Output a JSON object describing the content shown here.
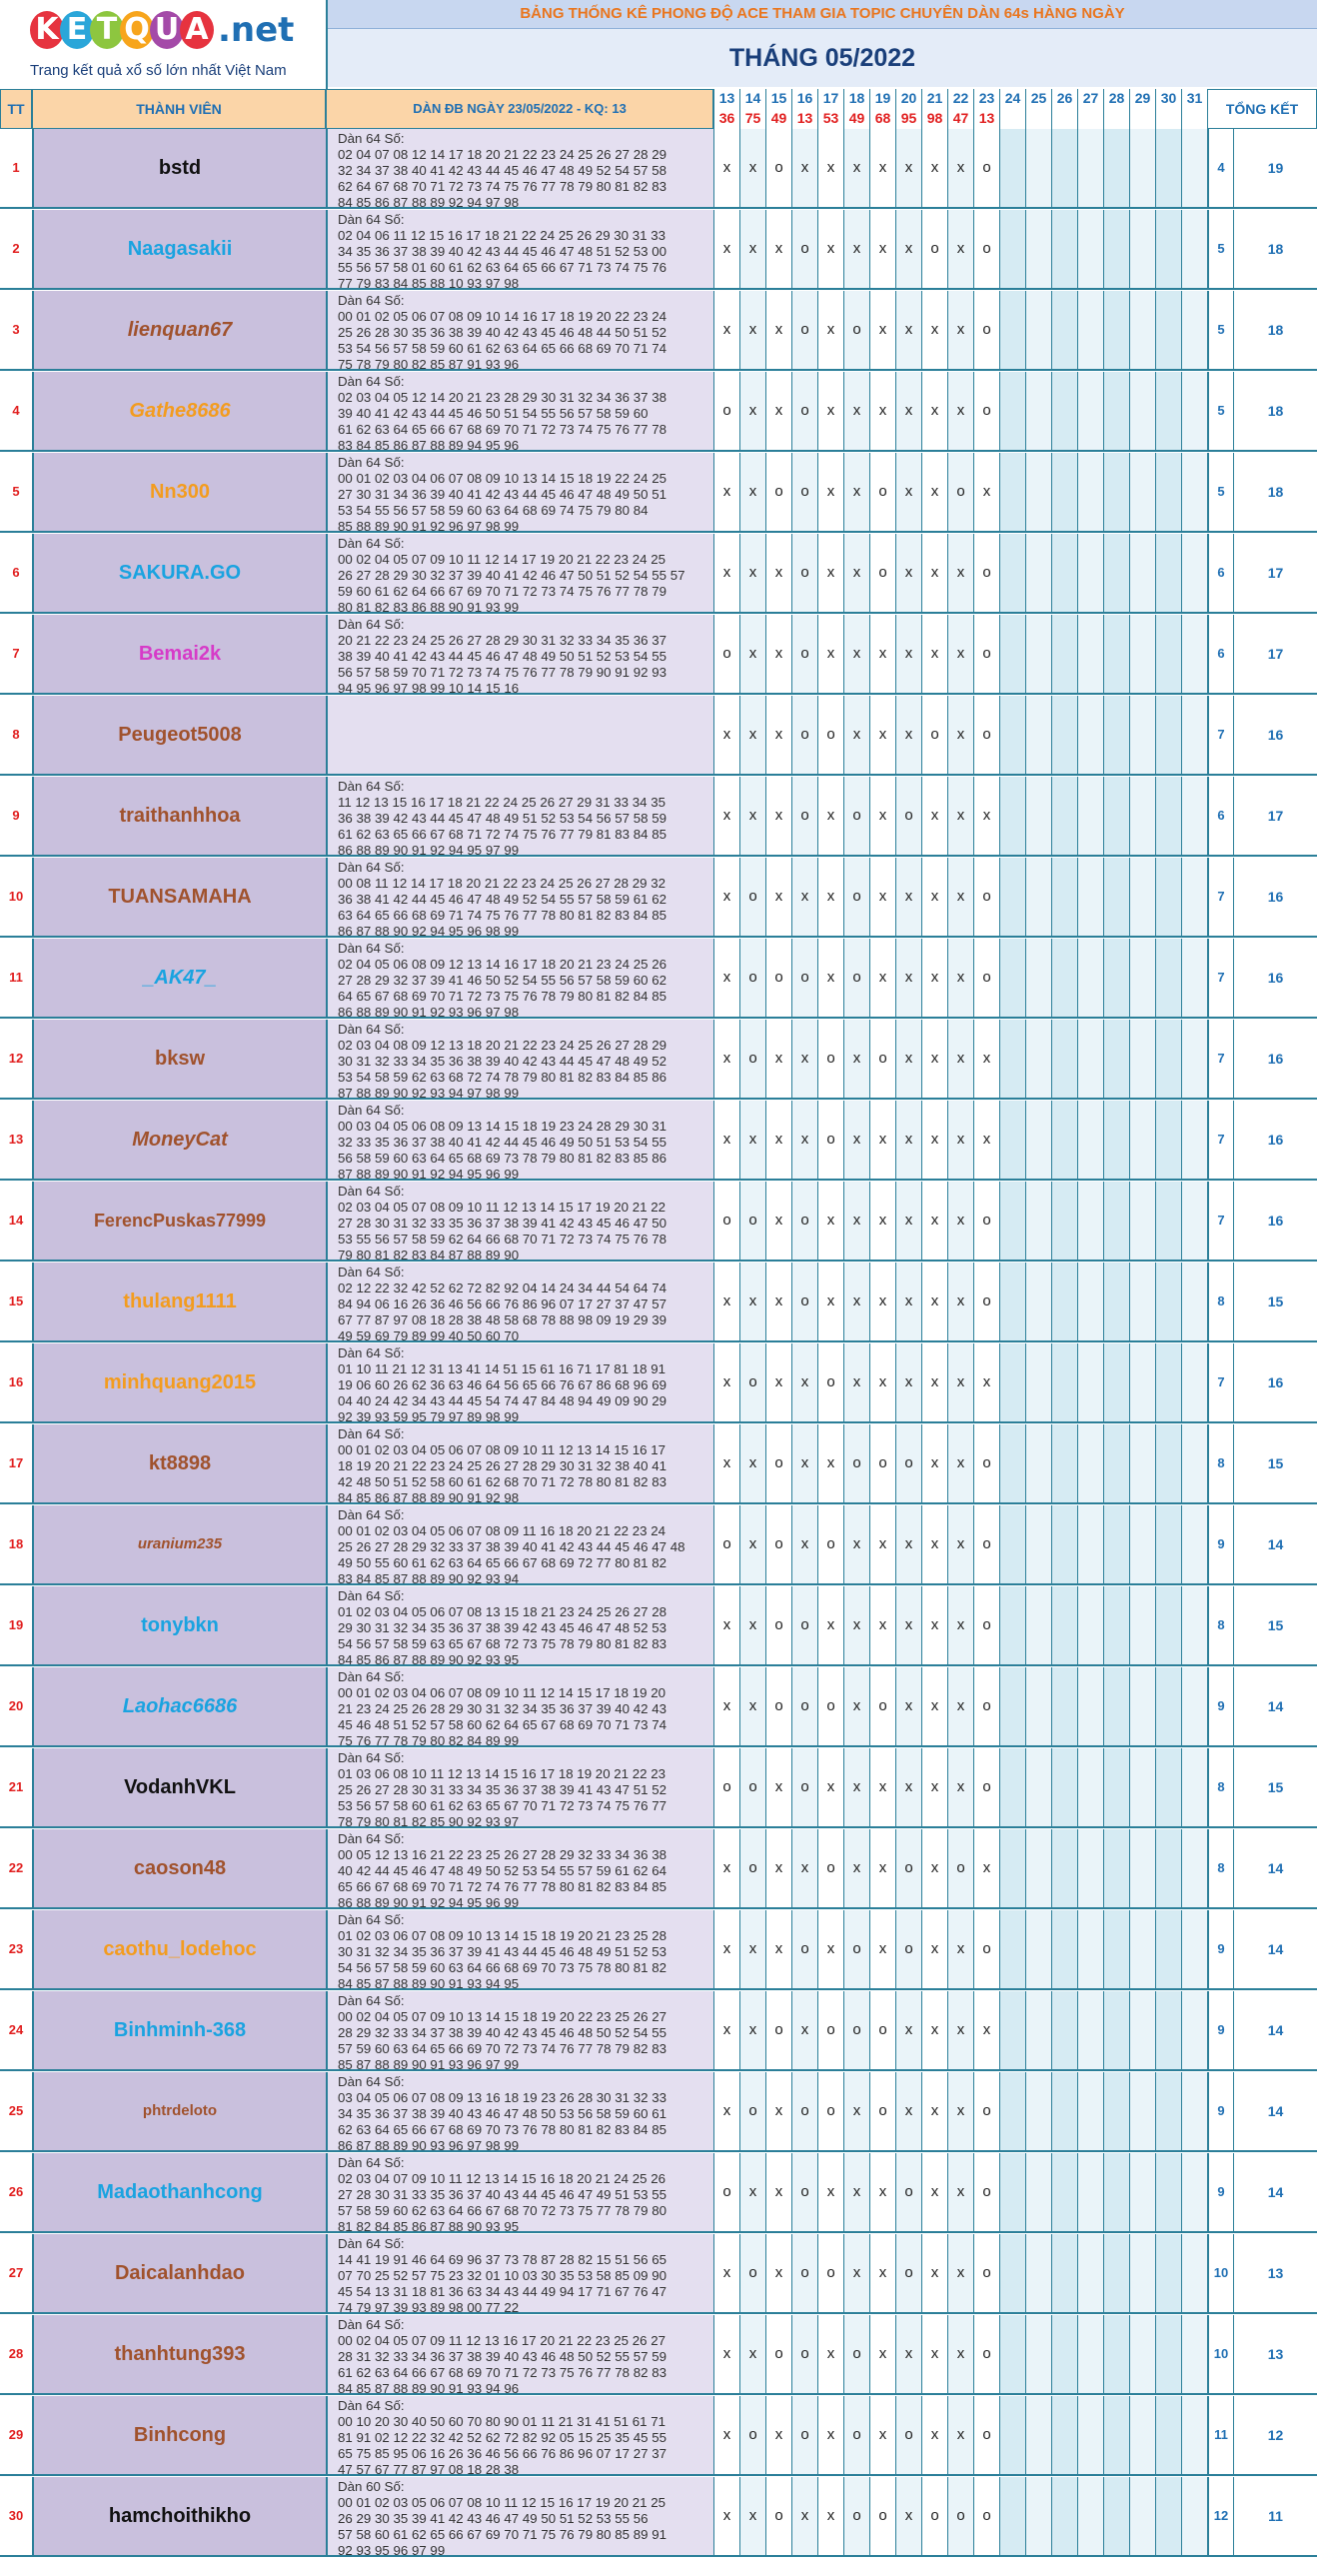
{
  "brand": {
    "logo_letters": [
      "K",
      "E",
      "T",
      "Q",
      "U",
      "A"
    ],
    "logo_colors": [
      "#e6333f",
      "#2aa6d9",
      "#8dc63f",
      "#f7a51c",
      "#a44aa8",
      "#e6333f"
    ],
    "logo_suffix": ".net",
    "tagline": "Trang kết quả xổ số lớn nhất Việt Nam"
  },
  "header": {
    "banner": "BẢNG THỐNG KÊ PHONG ĐỘ ACE THAM GIA TOPIC CHUYÊN DÀN 64s HÀNG NGÀY",
    "month": "THÁNG 05/2022"
  },
  "columns": {
    "tt": "TT",
    "member": "THÀNH VIÊN",
    "dan": "DÀN ĐB NGÀY 23/05/2022 - KQ: 13",
    "total": "TỔNG KẾT"
  },
  "dates": [
    "13",
    "14",
    "15",
    "16",
    "17",
    "18",
    "19",
    "20",
    "21",
    "22",
    "23",
    "24",
    "25",
    "26",
    "27",
    "28",
    "29",
    "30",
    "31"
  ],
  "results": [
    "36",
    "75",
    "49",
    "13",
    "53",
    "49",
    "68",
    "95",
    "98",
    "47",
    "13",
    "",
    "",
    "",
    "",
    "",
    "",
    "",
    ""
  ],
  "rows": [
    {
      "tt": "1",
      "name": "bstd",
      "color": "#111111",
      "style": "normal",
      "dan": "Dàn 64 Số:\n02 04 07 08 12 14 17 18 20 21 22 23 24 25 26 27 28 29\n32 34 37 38 40 41 42 43 44 45 46 47 48 49 52 54 57 58\n62 64 67 68 70 71 72 73 74 75 76 77 78 79 80 81 82 83\n84 85 86 87 88 89 92 94 97 98",
      "marks": [
        "x",
        "x",
        "o",
        "x",
        "x",
        "x",
        "x",
        "x",
        "x",
        "x",
        "o"
      ],
      "n1": "4",
      "n2": "19"
    },
    {
      "tt": "2",
      "name": "Naagasakii",
      "color": "#1aa3e0",
      "style": "normal",
      "dan": "Dàn 64 Số:\n02 04 06 11 12 15 16 17 18 21 22 24 25 26 29 30 31 33\n34 35 36 37 38 39 40 42 43 44 45 46 47 48 51 52 53 00\n55 56 57 58 01 60 61 62 63 64 65 66 67 71 73 74 75 76\n77 79 83 84 85 88 10 93 97 98",
      "marks": [
        "x",
        "x",
        "x",
        "o",
        "x",
        "x",
        "x",
        "x",
        "o",
        "x",
        "o"
      ],
      "n1": "5",
      "n2": "18"
    },
    {
      "tt": "3",
      "name": "lienquan67",
      "color": "#a0522d",
      "style": "italic",
      "dan": "Dàn 64 Số:\n00 01 02 05 06 07 08 09 10 14 16 17 18 19 20 22 23 24\n25 26 28 30 35 36 38 39 40 42 43 45 46 48 44 50 51 52\n53 54 56 57 58 59 60 61 62 63 64 65 66 68 69 70 71 74\n75 78 79 80 82 85 87 91 93 96",
      "marks": [
        "x",
        "x",
        "x",
        "o",
        "x",
        "o",
        "x",
        "x",
        "x",
        "x",
        "o"
      ],
      "n1": "5",
      "n2": "18"
    },
    {
      "tt": "4",
      "name": "Gathe8686",
      "color": "#f39c1f",
      "style": "italic",
      "dan": "Dàn 64 Số:\n02 03 04 05 12 14 20 21 23 28 29 30 31 32 34 36 37 38\n39 40 41 42 43 44 45 46 50 51 54 55 56 57 58 59 60\n61 62 63 64 65 66 67 68 69 70 71 72 73 74 75 76 77 78\n83 84 85 86 87 88 89 94 95 96",
      "marks": [
        "o",
        "x",
        "x",
        "o",
        "x",
        "x",
        "x",
        "x",
        "x",
        "x",
        "o"
      ],
      "n1": "5",
      "n2": "18"
    },
    {
      "tt": "5",
      "name": "Nn300",
      "color": "#f39c1f",
      "style": "normal",
      "dan": "Dàn 64 Số:\n00 01 02 03 04 06 07 08 09 10 13 14 15 18 19 22 24 25\n27 30 31 34 36 39 40 41 42 43 44 45 46 47 48 49 50 51\n53 54 55 56 57 58 59 60 63 64 68 69 74 75 79 80 84\n85 88 89 90 91 92 96 97 98 99",
      "marks": [
        "x",
        "x",
        "o",
        "o",
        "x",
        "x",
        "o",
        "x",
        "x",
        "o",
        "x"
      ],
      "n1": "5",
      "n2": "18"
    },
    {
      "tt": "6",
      "name": "SAKURA.GO",
      "color": "#1aa3e0",
      "style": "normal",
      "dan": "Dàn 64 Số:\n00 02 04 05 07 09 10 11 12 14 17 19 20 21 22 23 24 25\n26 27 28 29 30 32 37 39 40 41 42 46 47 50 51 52 54 55 57\n59 60 61 62 64 66 67 69 70 71 72 73 74 75 76 77 78 79\n80 81 82 83 86 88 90 91 93 99",
      "marks": [
        "x",
        "x",
        "x",
        "o",
        "x",
        "x",
        "o",
        "x",
        "x",
        "x",
        "o"
      ],
      "n1": "6",
      "n2": "17"
    },
    {
      "tt": "7",
      "name": "Bemai2k",
      "color": "#d63bc8",
      "style": "normal",
      "dan": "Dàn 64 Số:\n20 21 22 23 24 25 26 27 28 29 30 31 32 33 34 35 36 37\n38 39 40 41 42 43 44 45 46 47 48 49 50 51 52 53 54 55\n56 57 58 59 70 71 72 73 74 75 76 77 78 79 90 91 92 93\n94 95 96 97 98 99 10 14 15 16",
      "marks": [
        "o",
        "x",
        "x",
        "o",
        "x",
        "x",
        "x",
        "x",
        "x",
        "x",
        "o"
      ],
      "n1": "6",
      "n2": "17"
    },
    {
      "tt": "8",
      "name": "Peugeot5008",
      "color": "#a0522d",
      "style": "normal",
      "dan": "",
      "marks": [
        "x",
        "x",
        "x",
        "o",
        "o",
        "x",
        "x",
        "x",
        "o",
        "x",
        "o"
      ],
      "n1": "7",
      "n2": "16"
    },
    {
      "tt": "9",
      "name": "traithanhhoa",
      "color": "#a0522d",
      "style": "normal",
      "dan": "Dàn 64 Số:\n11 12 13 15 16 17 18 21 22 24 25 26 27 29 31 33 34 35\n36 38 39 42 43 44 45 47 48 49 51 52 53 54 56 57 58 59\n61 62 63 65 66 67 68 71 72 74 75 76 77 79 81 83 84 85\n86 88 89 90 91 92 94 95 97 99",
      "marks": [
        "x",
        "x",
        "x",
        "o",
        "x",
        "o",
        "x",
        "o",
        "x",
        "x",
        "x"
      ],
      "n1": "6",
      "n2": "17"
    },
    {
      "tt": "10",
      "name": "TUANSAMAHA",
      "color": "#a0522d",
      "style": "normal",
      "dan": "Dàn 64 Số:\n00 08 11 12 14 17 18 20 21 22 23 24 25 26 27 28 29 32\n36 38 41 42 44 45 46 47 48 49 52 54 55 57 58 59 61 62\n63 64 65 66 68 69 71 74 75 76 77 78 80 81 82 83 84 85\n86 87 88 90 92 94 95 96 98 99",
      "marks": [
        "x",
        "o",
        "x",
        "x",
        "x",
        "o",
        "x",
        "x",
        "x",
        "x",
        "o"
      ],
      "n1": "7",
      "n2": "16"
    },
    {
      "tt": "11",
      "name": "_AK47_",
      "color": "#1aa3e0",
      "style": "italic",
      "dan": "Dàn 64 Số:\n02 04 05 06 08 09 12 13 14 16 17 18 20 21 23 24 25 26\n27 28 29 32 37 39 41 46 50 52 54 55 56 57 58 59 60 62\n64 65 67 68 69 70 71 72 73 75 76 78 79 80 81 82 84 85\n86 88 89 90 91 92 93 96 97 98",
      "marks": [
        "x",
        "o",
        "o",
        "o",
        "x",
        "o",
        "x",
        "x",
        "x",
        "x",
        "o"
      ],
      "n1": "7",
      "n2": "16"
    },
    {
      "tt": "12",
      "name": "bksw",
      "color": "#a0522d",
      "style": "normal",
      "dan": "Dàn 64 Số:\n02 03 04 08 09 12 13 18 20 21 22 23 24 25 26 27 28 29\n30 31 32 33 34 35 36 38 39 40 42 43 44 45 47 48 49 52\n53 54 58 59 62 63 68 72 74 78 79 80 81 82 83 84 85 86\n87 88 89 90 92 93 94 97 98 99",
      "marks": [
        "x",
        "o",
        "x",
        "x",
        "o",
        "x",
        "o",
        "x",
        "x",
        "x",
        "x"
      ],
      "n1": "7",
      "n2": "16"
    },
    {
      "tt": "13",
      "name": "MoneyCat",
      "color": "#a0522d",
      "style": "italic",
      "dan": "Dàn 64 Số:\n00 03 04 05 06 08 09 13 14 15 18 19 23 24 28 29 30 31\n32 33 35 36 37 38 40 41 42 44 45 46 49 50 51 53 54 55\n56 58 59 60 63 64 65 68 69 73 78 79 80 81 82 83 85 86\n87 88 89 90 91 92 94 95 96 99",
      "marks": [
        "x",
        "x",
        "x",
        "x",
        "o",
        "x",
        "x",
        "x",
        "x",
        "x",
        "x"
      ],
      "n1": "7",
      "n2": "16"
    },
    {
      "tt": "14",
      "name": "FerencPuskas77999",
      "color": "#a0522d",
      "style": "normal",
      "dan": "Dàn 64 Số:\n02 03 04 05 07 08 09 10 11 12 13 14 15 17 19 20 21 22\n27 28 30 31 32 33 35 36 37 38 39 41 42 43 45 46 47 50\n53 55 56 57 58 59 62 64 66 68 70 71 72 73 74 75 76 78\n79 80 81 82 83 84 87 88 89 90",
      "marks": [
        "o",
        "o",
        "x",
        "o",
        "x",
        "x",
        "x",
        "x",
        "x",
        "x",
        "o"
      ],
      "n1": "7",
      "n2": "16"
    },
    {
      "tt": "15",
      "name": "thulang1111",
      "color": "#f39c1f",
      "style": "normal",
      "dan": "Dàn 64 Số:\n02 12 22 32 42 52 62 72 82 92 04 14 24 34 44 54 64 74\n84 94 06 16 26 36 46 56 66 76 86 96 07 17 27 37 47 57\n67 77 87 97 08 18 28 38 48 58 68 78 88 98 09 19 29 39\n49 59 69 79 89 99 40 50 60 70",
      "marks": [
        "x",
        "x",
        "x",
        "o",
        "x",
        "x",
        "x",
        "x",
        "x",
        "x",
        "o"
      ],
      "n1": "8",
      "n2": "15"
    },
    {
      "tt": "16",
      "name": "minhquang2015",
      "color": "#f39c1f",
      "style": "normal",
      "dan": "Dàn 64 Số:\n01 10 11 21 12 31 13 41 14 51 15 61 16 71 17 81 18 91\n19 06 60 26 62 36 63 46 64 56 65 66 76 67 86 68 96 69\n04 40 24 42 34 43 44 45 54 74 47 84 48 94 49 09 90 29\n92 39 93 59 95 79 97 89 98 99",
      "marks": [
        "x",
        "o",
        "x",
        "x",
        "o",
        "x",
        "x",
        "x",
        "x",
        "x",
        "x"
      ],
      "n1": "7",
      "n2": "16"
    },
    {
      "tt": "17",
      "name": "kt8898",
      "color": "#a0522d",
      "style": "normal",
      "dan": "Dàn 64 Số:\n00 01 02 03 04 05 06 07 08 09 10 11 12 13 14 15 16 17\n18 19 20 21 22 23 24 25 26 27 28 29 30 31 32 38 40 41\n42 48 50 51 52 58 60 61 62 68 70 71 72 78 80 81 82 83\n84 85 86 87 88 89 90 91 92 98",
      "marks": [
        "x",
        "x",
        "o",
        "x",
        "x",
        "o",
        "o",
        "o",
        "x",
        "x",
        "o"
      ],
      "n1": "8",
      "n2": "15"
    },
    {
      "tt": "18",
      "name": "uranium235",
      "color": "#a0522d",
      "style": "italic",
      "dan": "Dàn 64 Số:\n00 01 02 03 04 05 06 07 08 09 11 16 18 20 21 22 23 24\n25 26 27 28 29 32 33 37 38 39 40 41 42 43 44 45 46 47 48\n49 50 55 60 61 62 63 64 65 66 67 68 69 72 77 80 81 82\n83 84 85 87 88 89 90 92 93 94",
      "marks": [
        "o",
        "x",
        "o",
        "x",
        "o",
        "x",
        "x",
        "x",
        "x",
        "x",
        "o"
      ],
      "n1": "9",
      "n2": "14"
    },
    {
      "tt": "19",
      "name": "tonybkn",
      "color": "#1aa3e0",
      "style": "normal",
      "dan": "Dàn 64 Số:\n01 02 03 04 05 06 07 08 13 15 18 21 23 24 25 26 27 28\n29 30 31 32 34 35 36 37 38 39 42 43 45 46 47 48 52 53\n54 56 57 58 59 63 65 67 68 72 73 75 78 79 80 81 82 83\n84 85 86 87 88 89 90 92 93 95",
      "marks": [
        "x",
        "x",
        "o",
        "o",
        "x",
        "x",
        "x",
        "x",
        "x",
        "x",
        "o"
      ],
      "n1": "8",
      "n2": "15"
    },
    {
      "tt": "20",
      "name": "Laohac6686",
      "color": "#1aa3e0",
      "style": "italic",
      "dan": "Dàn 64 Số:\n00 01 02 03 04 06 07 08 09 10 11 12 14 15 17 18 19 20\n21 23 24 25 26 28 29 30 31 32 34 35 36 37 39 40 42 43\n45 46 48 51 52 57 58 60 62 64 65 67 68 69 70 71 73 74\n75 76 77 78 79 80 82 84 89 99",
      "marks": [
        "x",
        "x",
        "o",
        "o",
        "o",
        "x",
        "o",
        "x",
        "x",
        "x",
        "o"
      ],
      "n1": "9",
      "n2": "14"
    },
    {
      "tt": "21",
      "name": "VodanhVKL",
      "color": "#111111",
      "style": "normal",
      "dan": "Dàn 64 Số:\n01 03 06 08 10 11 12 13 14 15 16 17 18 19 20 21 22 23\n25 26 27 28 30 31 33 34 35 36 37 38 39 41 43 47 51 52\n53 56 57 58 60 61 62 63 65 67 70 71 72 73 74 75 76 77\n78 79 80 81 82 85 90 92 93 97",
      "marks": [
        "o",
        "o",
        "x",
        "o",
        "x",
        "x",
        "x",
        "x",
        "x",
        "x",
        "o"
      ],
      "n1": "8",
      "n2": "15"
    },
    {
      "tt": "22",
      "name": "caoson48",
      "color": "#a0522d",
      "style": "normal",
      "dan": "Dàn 64 Số:\n00 05 12 13 16 21 22 23 25 26 27 28 29 32 33 34 36 38\n40 42 44 45 46 47 48 49 50 52 53 54 55 57 59 61 62 64\n65 66 67 68 69 70 71 72 74 76 77 78 80 81 82 83 84 85\n86 88 89 90 91 92 94 95 96 99",
      "marks": [
        "x",
        "o",
        "x",
        "x",
        "o",
        "x",
        "x",
        "o",
        "x",
        "o",
        "x"
      ],
      "n1": "8",
      "n2": "14"
    },
    {
      "tt": "23",
      "name": "caothu_lodehoc",
      "color": "#f39c1f",
      "style": "normal",
      "dan": "Dàn 64 Số:\n01 02 03 06 07 08 09 10 13 14 15 18 19 20 21 23 25 28\n30 31 32 34 35 36 37 39 41 43 44 45 46 48 49 51 52 53\n54 56 57 58 59 60 63 64 66 68 69 70 73 75 78 80 81 82\n84 85 87 88 89 90 91 93 94 95",
      "marks": [
        "x",
        "x",
        "x",
        "o",
        "x",
        "o",
        "x",
        "o",
        "x",
        "x",
        "o"
      ],
      "n1": "9",
      "n2": "14"
    },
    {
      "tt": "24",
      "name": "Binhminh-368",
      "color": "#1aa3e0",
      "style": "normal",
      "dan": "Dàn 64 Số:\n00 02 04 05 07 09 10 13 14 15 18 19 20 22 23 25 26 27\n28 29 32 33 34 37 38 39 40 42 43 45 46 48 50 52 54 55\n57 59 60 63 64 65 66 69 70 72 73 74 76 77 78 79 82 83\n85 87 88 89 90 91 93 96 97 99",
      "marks": [
        "x",
        "x",
        "o",
        "x",
        "o",
        "o",
        "o",
        "x",
        "x",
        "x",
        "x"
      ],
      "n1": "9",
      "n2": "14"
    },
    {
      "tt": "25",
      "name": "phtrdeloto",
      "color": "#a0522d",
      "style": "normal",
      "dan": "Dàn 64 Số:\n03 04 05 06 07 08 09 13 16 18 19 23 26 28 30 31 32 33\n34 35 36 37 38 39 40 43 46 47 48 50 53 56 58 59 60 61\n62 63 64 65 66 67 68 69 70 73 76 78 80 81 82 83 84 85\n86 87 88 89 90 93 96 97 98 99",
      "marks": [
        "x",
        "o",
        "x",
        "o",
        "o",
        "x",
        "o",
        "x",
        "x",
        "x",
        "o"
      ],
      "n1": "9",
      "n2": "14"
    },
    {
      "tt": "26",
      "name": "Madaothanhcong",
      "color": "#1aa3e0",
      "style": "normal",
      "dan": "Dàn 64 Số:\n02 03 04 07 09 10 11 12 13 14 15 16 18 20 21 24 25 26\n27 28 30 31 33 35 36 37 40 43 44 45 46 47 49 51 53 55\n57 58 59 60 62 63 64 66 67 68 70 72 73 75 77 78 79 80\n81 82 84 85 86 87 88 90 93 95",
      "marks": [
        "o",
        "x",
        "x",
        "o",
        "x",
        "x",
        "x",
        "o",
        "x",
        "x",
        "o"
      ],
      "n1": "9",
      "n2": "14"
    },
    {
      "tt": "27",
      "name": "Daicalanhdao",
      "color": "#a0522d",
      "style": "normal",
      "dan": "Dàn 64 Số:\n14 41 19 91 46 64 69 96 37 73 78 87 28 82 15 51 56 65\n07 70 25 52 57 75 23 32 01 10 03 30 35 53 58 85 09 90\n45 54 13 31 18 81 36 63 34 43 44 49 94 17 71 67 76 47\n74 79 97 39 93 89 98 00 77 22",
      "marks": [
        "x",
        "o",
        "x",
        "o",
        "o",
        "x",
        "x",
        "o",
        "x",
        "x",
        "o"
      ],
      "n1": "10",
      "n2": "13"
    },
    {
      "tt": "28",
      "name": "thanhtung393",
      "color": "#a0522d",
      "style": "normal",
      "dan": "Dàn 64 Số:\n00 02 04 05 07 09 11 12 13 16 17 20 21 22 23 25 26 27\n28 31 32 33 34 36 37 38 39 40 43 46 48 50 52 55 57 59\n61 62 63 64 66 67 68 69 70 71 72 73 75 76 77 78 82 83\n84 85 87 88 89 90 91 93 94 96",
      "marks": [
        "x",
        "x",
        "o",
        "o",
        "x",
        "o",
        "x",
        "x",
        "x",
        "x",
        "o"
      ],
      "n1": "10",
      "n2": "13"
    },
    {
      "tt": "29",
      "name": "Binhcong",
      "color": "#a0522d",
      "style": "normal",
      "dan": "Dàn 64 Số:\n00 10 20 30 40 50 60 70 80 90 01 11 21 31 41 51 61 71\n81 91 02 12 22 32 42 52 62 72 82 92 05 15 25 35 45 55\n65 75 85 95 06 16 26 36 46 56 66 76 86 96 07 17 27 37\n47 57 67 77 87 97 08 18 28 38",
      "marks": [
        "x",
        "o",
        "x",
        "o",
        "x",
        "o",
        "x",
        "o",
        "x",
        "x",
        "o"
      ],
      "n1": "11",
      "n2": "12"
    },
    {
      "tt": "30",
      "name": "hamchoithikho",
      "color": "#111111",
      "style": "normal",
      "dan": "Dàn 60 Số:\n00 01 02 03 05 06 07 08 10 11 12 15 16 17 19 20 21 25\n26 29 30 35 39 41 42 43 46 47 49 50 51 52 53 55 56\n57 58 60 61 62 65 66 67 69 70 71 75 76 79 80 85 89 91\n92 93 95 96 97 99",
      "marks": [
        "x",
        "x",
        "o",
        "x",
        "x",
        "o",
        "o",
        "x",
        "o",
        "o",
        "o"
      ],
      "n1": "12",
      "n2": "11"
    }
  ]
}
